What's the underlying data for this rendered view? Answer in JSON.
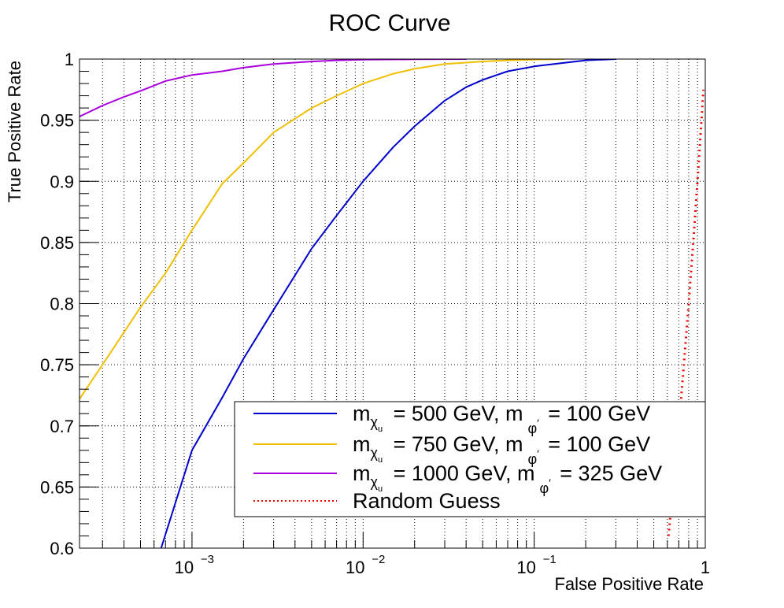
{
  "chart_data": {
    "type": "line",
    "title": "ROC Curve",
    "xlabel": "False Positive Rate",
    "ylabel": "True Positive Rate",
    "x_scale": "log",
    "xlim": [
      0.00022,
      1
    ],
    "ylim": [
      0.6,
      1
    ],
    "grid": true,
    "x_ticks": [
      {
        "value": 0.001,
        "base": "10",
        "exp": "−3"
      },
      {
        "value": 0.01,
        "base": "10",
        "exp": "−2"
      },
      {
        "value": 0.1,
        "base": "10",
        "exp": "−1"
      },
      {
        "value": 1,
        "base": "1",
        "exp": ""
      }
    ],
    "y_ticks": [
      {
        "value": 0.6,
        "label": "0.6"
      },
      {
        "value": 0.65,
        "label": "0.65"
      },
      {
        "value": 0.7,
        "label": "0.7"
      },
      {
        "value": 0.75,
        "label": "0.75"
      },
      {
        "value": 0.8,
        "label": "0.8"
      },
      {
        "value": 0.85,
        "label": "0.85"
      },
      {
        "value": 0.9,
        "label": "0.9"
      },
      {
        "value": 0.95,
        "label": "0.95"
      },
      {
        "value": 1,
        "label": "1"
      }
    ],
    "legend_position": "bottom-right",
    "series": [
      {
        "color": "#0000cc",
        "style": "solid",
        "legend": {
          "pre": "= 500 GeV, m",
          "post": "= 100 GeV"
        },
        "x": [
          0.00066,
          0.001,
          0.0015,
          0.002,
          0.003,
          0.005,
          0.007,
          0.01,
          0.015,
          0.02,
          0.03,
          0.04,
          0.05,
          0.07,
          0.1,
          0.15,
          0.2,
          0.3
        ],
        "y": [
          0.6,
          0.68,
          0.723,
          0.755,
          0.795,
          0.845,
          0.872,
          0.9,
          0.928,
          0.945,
          0.966,
          0.977,
          0.983,
          0.99,
          0.994,
          0.997,
          0.999,
          1.0
        ]
      },
      {
        "color": "#f0c000",
        "style": "solid",
        "legend": {
          "pre": "= 750 GeV, m",
          "post": "= 100 GeV"
        },
        "x": [
          0.00022,
          0.0003,
          0.0005,
          0.0007,
          0.001,
          0.0015,
          0.002,
          0.003,
          0.005,
          0.007,
          0.01,
          0.015,
          0.02,
          0.03,
          0.05,
          0.07,
          0.1,
          0.15
        ],
        "y": [
          0.722,
          0.75,
          0.797,
          0.825,
          0.86,
          0.898,
          0.915,
          0.94,
          0.96,
          0.97,
          0.98,
          0.988,
          0.992,
          0.996,
          0.998,
          0.999,
          0.9995,
          1.0
        ]
      },
      {
        "color": "#aa00dd",
        "style": "solid",
        "legend": {
          "pre": "= 1000 GeV, m",
          "post": "= 325 GeV"
        },
        "x": [
          0.00022,
          0.0003,
          0.0004,
          0.0005,
          0.0007,
          0.001,
          0.0015,
          0.002,
          0.003,
          0.005,
          0.007,
          0.01,
          0.02,
          0.04
        ],
        "y": [
          0.953,
          0.962,
          0.969,
          0.974,
          0.982,
          0.987,
          0.99,
          0.993,
          0.996,
          0.998,
          0.999,
          0.9995,
          0.9998,
          1.0
        ]
      },
      {
        "color": "#ee0000",
        "style": "dotted",
        "legend": {
          "pre": "",
          "post": "Random Guess"
        },
        "x": [
          0.61,
          0.72,
          0.75,
          0.8,
          0.85,
          0.9,
          0.95,
          0.975
        ],
        "y": [
          0.61,
          0.72,
          0.75,
          0.8,
          0.85,
          0.9,
          0.95,
          0.975
        ]
      }
    ]
  }
}
